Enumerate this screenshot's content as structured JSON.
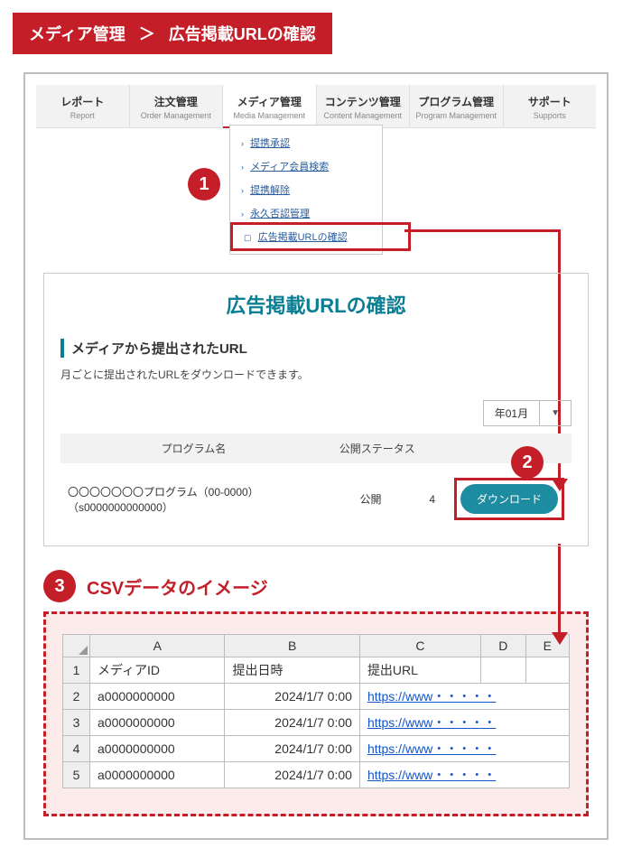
{
  "breadcrumb": {
    "a": "メディア管理",
    "sep": "＞",
    "b": "広告掲載URLの確認"
  },
  "nav": [
    {
      "jp": "レポート",
      "en": "Report"
    },
    {
      "jp": "注文管理",
      "en": "Order Management"
    },
    {
      "jp": "メディア管理",
      "en": "Media Management"
    },
    {
      "jp": "コンテンツ管理",
      "en": "Content Management"
    },
    {
      "jp": "プログラム管理",
      "en": "Program Management"
    },
    {
      "jp": "サポート",
      "en": "Supports"
    }
  ],
  "dropdown": {
    "items": [
      "提携承認",
      "メディア会員検索",
      "提携解除",
      "永久否認管理"
    ],
    "highlighted": "広告掲載URLの確認"
  },
  "badges": {
    "n1": "1",
    "n2": "2",
    "n3": "3"
  },
  "panel": {
    "title": "広告掲載URLの確認",
    "heading": "メディアから提出されたURL",
    "note": "月ごとに提出されたURLをダウンロードできます。",
    "month_value": "年01月",
    "list_header": {
      "program": "プログラム名",
      "status": "公開ステータス"
    },
    "row": {
      "program": "〇〇〇〇〇〇〇プログラム（00-0000）（s0000000000000）",
      "status": "公開",
      "num": "4",
      "download": "ダウンロード"
    }
  },
  "csv": {
    "title": "CSVデータのイメージ",
    "cols": [
      "A",
      "B",
      "C",
      "D",
      "E"
    ],
    "header_row": {
      "A": "メディアID",
      "B": "提出日時",
      "C": "提出URL",
      "D": "",
      "E": ""
    },
    "rows": [
      {
        "A": "a0000000000",
        "B": "2024/1/7 0:00",
        "link": "https://www・・・・・"
      },
      {
        "A": "a0000000000",
        "B": "2024/1/7 0:00",
        "link": "https://www・・・・・"
      },
      {
        "A": "a0000000000",
        "B": "2024/1/7 0:00",
        "link": "https://www・・・・・"
      },
      {
        "A": "a0000000000",
        "B": "2024/1/7 0:00",
        "link": "https://www・・・・・"
      }
    ],
    "rownums": [
      "1",
      "2",
      "3",
      "4",
      "5"
    ]
  },
  "colors": {
    "brand_red": "#c41e29",
    "teal": "#0a7e93",
    "dl_btn": "#1d8ba0",
    "grid_border": "#bcbcbc",
    "link": "#1155cc"
  }
}
